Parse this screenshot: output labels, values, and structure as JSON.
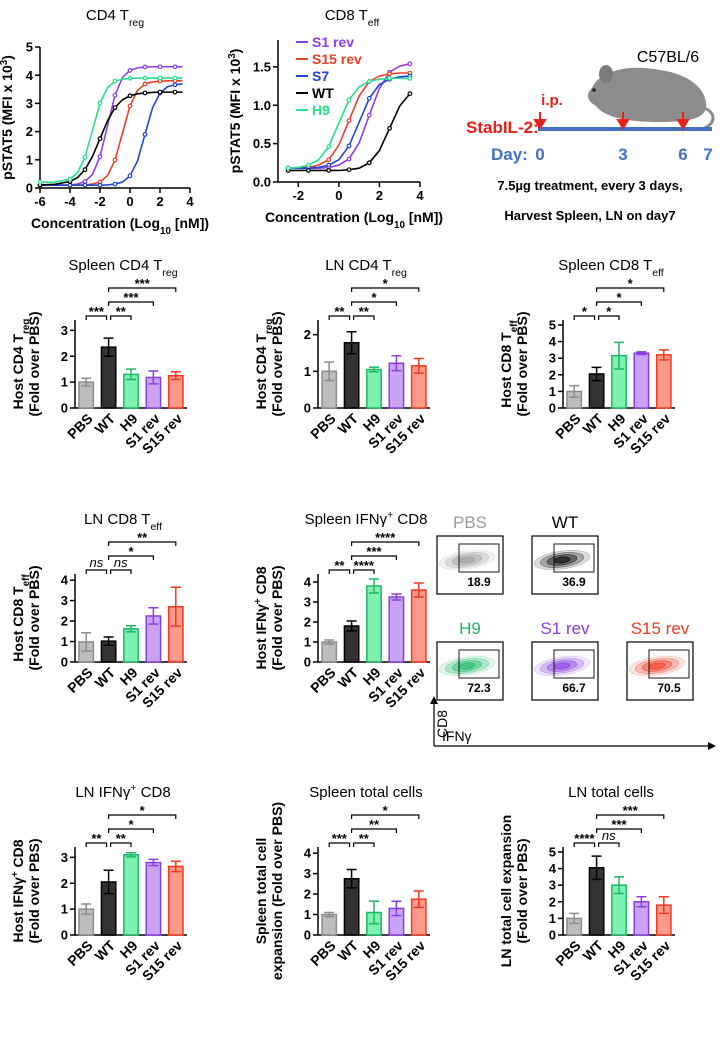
{
  "chart_data": [
    {
      "type": "line",
      "title": [
        {
          "text": "CD4 T"
        },
        {
          "text": "reg",
          "sub": true
        }
      ],
      "xlabel": [
        {
          "text": "Concentration (Log"
        },
        {
          "text": "10",
          "sub": true
        },
        {
          "text": " [nM])"
        }
      ],
      "ylabel": [
        {
          "text": "pSTAT5 (MFI x 10"
        },
        {
          "text": "3",
          "sup": true
        },
        {
          "text": ")"
        }
      ],
      "xlim": [
        -6,
        4
      ],
      "xticks": [
        -6,
        -4,
        -2,
        0,
        2,
        4
      ],
      "ylim": [
        0,
        5
      ],
      "yticks": [
        0,
        1,
        2,
        3,
        4,
        5
      ],
      "x": [
        -6,
        -5,
        -4,
        -3.5,
        -3,
        -2.5,
        -2,
        -1.5,
        -1,
        -0.5,
        0,
        0.5,
        1,
        1.5,
        2,
        2.5,
        3,
        3.5
      ],
      "series": [
        {
          "name": "S1 rev",
          "color": "#8f3de8",
          "values": [
            0.1,
            0.1,
            0.11,
            0.14,
            0.23,
            0.48,
            1.11,
            2.2,
            3.29,
            3.92,
            4.17,
            4.26,
            4.29,
            4.3,
            4.3,
            4.3,
            4.3,
            4.3
          ]
        },
        {
          "name": "S15 rev",
          "color": "#e8412a",
          "values": [
            0.1,
            0.1,
            0.1,
            0.1,
            0.11,
            0.14,
            0.21,
            0.44,
            0.99,
            1.95,
            2.91,
            3.46,
            3.69,
            3.76,
            3.79,
            3.8,
            3.8,
            3.8
          ]
        },
        {
          "name": "S7",
          "color": "#1f47d6",
          "values": [
            0.1,
            0.1,
            0.1,
            0.1,
            0.1,
            0.1,
            0.1,
            0.11,
            0.14,
            0.21,
            0.43,
            0.96,
            1.9,
            2.84,
            3.37,
            3.59,
            3.66,
            3.69
          ]
        },
        {
          "name": "WT",
          "color": "#000000",
          "values": [
            0.11,
            0.13,
            0.23,
            0.37,
            0.65,
            1.12,
            1.75,
            2.38,
            2.85,
            3.13,
            3.27,
            3.34,
            3.37,
            3.39,
            3.4,
            3.4,
            3.4,
            3.4
          ]
        },
        {
          "name": "H9",
          "color": "#28e08c",
          "values": [
            0.2,
            0.21,
            0.31,
            0.54,
            1.09,
            2.05,
            3.01,
            3.56,
            3.79,
            3.86,
            3.89,
            3.9,
            3.9,
            3.9,
            3.9,
            3.9,
            3.9,
            3.9
          ]
        }
      ]
    },
    {
      "type": "line",
      "title": [
        {
          "text": "CD8 T"
        },
        {
          "text": "eff",
          "sub": true
        }
      ],
      "xlabel": [
        {
          "text": "Concentration (Log"
        },
        {
          "text": "10",
          "sub": true
        },
        {
          "text": " [nM])"
        }
      ],
      "ylabel": [
        {
          "text": "pSTAT5 (MFI x 10"
        },
        {
          "text": "3",
          "sup": true
        },
        {
          "text": ")"
        }
      ],
      "legend": "upper left",
      "xlim": [
        -3,
        4
      ],
      "xticks": [
        -2,
        0,
        2,
        4
      ],
      "ylim": [
        0,
        1.85
      ],
      "yticks": [
        {
          "value": 0,
          "label": "0.0"
        },
        0.5,
        {
          "value": 1,
          "label": "1.0"
        },
        1.5
      ],
      "x": [
        -2.5,
        -2,
        -1.5,
        -1,
        -0.5,
        0,
        0.5,
        1,
        1.5,
        2,
        2.5,
        3,
        3.5
      ],
      "series": [
        {
          "name": "S1 rev",
          "color": "#8f3de8",
          "values": [
            0.18,
            0.18,
            0.18,
            0.18,
            0.19,
            0.22,
            0.3,
            0.51,
            0.87,
            1.22,
            1.43,
            1.51,
            1.54
          ]
        },
        {
          "name": "S15 rev",
          "color": "#e8412a",
          "values": [
            0.18,
            0.18,
            0.19,
            0.22,
            0.29,
            0.48,
            0.8,
            1.12,
            1.31,
            1.38,
            1.41,
            1.42,
            1.42
          ]
        },
        {
          "name": "S7",
          "color": "#1f47d6",
          "values": [
            0.18,
            0.18,
            0.18,
            0.19,
            0.22,
            0.29,
            0.47,
            0.78,
            1.09,
            1.27,
            1.34,
            1.37,
            1.38
          ]
        },
        {
          "name": "WT",
          "color": "#000000",
          "values": [
            0.15,
            0.15,
            0.15,
            0.15,
            0.15,
            0.15,
            0.16,
            0.18,
            0.25,
            0.41,
            0.7,
            0.99,
            1.15
          ]
        },
        {
          "name": "H9",
          "color": "#28e08c",
          "values": [
            0.18,
            0.19,
            0.22,
            0.29,
            0.46,
            0.77,
            1.07,
            1.24,
            1.31,
            1.34,
            1.35,
            1.35,
            1.35
          ]
        }
      ]
    },
    {
      "type": "bar",
      "title": [
        {
          "text": "Spleen CD4 T"
        },
        {
          "text": "reg",
          "sub": true
        }
      ],
      "ylabel": [
        [
          {
            "text": "Host CD4 T"
          },
          {
            "text": "reg",
            "sub": true
          }
        ],
        "(Fold over PBS)"
      ],
      "categories": [
        "PBS",
        "WT",
        "H9",
        "S1 rev",
        "S15 rev"
      ],
      "colors": [
        "#bdbdbd",
        "#333333",
        "#7ef0b0",
        "#c9a3f5",
        "#ff9a8a"
      ],
      "edge_colors": [
        "#8c8c8c",
        "#000000",
        "#1db865",
        "#8a3ee0",
        "#f03a20"
      ],
      "values": [
        1.0,
        2.35,
        1.3,
        1.18,
        1.25
      ],
      "errors": [
        0.15,
        0.35,
        0.2,
        0.25,
        0.15
      ],
      "ylim": [
        0,
        3.4
      ],
      "yticks": [
        0,
        1,
        2,
        3
      ],
      "significance": [
        {
          "between": [
            "PBS",
            "WT"
          ],
          "label": "***"
        },
        {
          "between": [
            "WT",
            "H9"
          ],
          "label": "**"
        },
        {
          "between": [
            "WT",
            "S1 rev"
          ],
          "label": "***"
        },
        {
          "between": [
            "WT",
            "S15 rev"
          ],
          "label": "***"
        }
      ]
    },
    {
      "type": "bar",
      "title": [
        {
          "text": "LN CD4 T"
        },
        {
          "text": "reg",
          "sub": true
        }
      ],
      "ylabel": [
        [
          {
            "text": "Host CD4 T"
          },
          {
            "text": "reg",
            "sub": true
          }
        ],
        "(Fold over PBS)"
      ],
      "categories": [
        "PBS",
        "WT",
        "H9",
        "S1 rev",
        "S15 rev"
      ],
      "colors": [
        "#bdbdbd",
        "#333333",
        "#7ef0b0",
        "#c9a3f5",
        "#ff9a8a"
      ],
      "edge_colors": [
        "#8c8c8c",
        "#000000",
        "#1db865",
        "#8a3ee0",
        "#f03a20"
      ],
      "values": [
        1.0,
        1.78,
        1.05,
        1.22,
        1.15
      ],
      "errors": [
        0.25,
        0.3,
        0.06,
        0.2,
        0.2
      ],
      "ylim": [
        0,
        2.4
      ],
      "yticks": [
        0,
        1,
        2
      ],
      "significance": [
        {
          "between": [
            "PBS",
            "WT"
          ],
          "label": "**"
        },
        {
          "between": [
            "WT",
            "H9"
          ],
          "label": "**"
        },
        {
          "between": [
            "WT",
            "S1 rev"
          ],
          "label": "*"
        },
        {
          "between": [
            "WT",
            "S15 rev"
          ],
          "label": "*"
        }
      ]
    },
    {
      "type": "bar",
      "title": [
        {
          "text": "Spleen CD8 T"
        },
        {
          "text": "eff",
          "sub": true
        }
      ],
      "ylabel": [
        [
          {
            "text": "Host CD8 T"
          },
          {
            "text": "eff",
            "sub": true
          }
        ],
        "(Fold over PBS)"
      ],
      "categories": [
        "PBS",
        "WT",
        "H9",
        "S1 rev",
        "S15 rev"
      ],
      "colors": [
        "#bdbdbd",
        "#333333",
        "#7ef0b0",
        "#c9a3f5",
        "#ff9a8a"
      ],
      "edge_colors": [
        "#8c8c8c",
        "#000000",
        "#1db865",
        "#8a3ee0",
        "#f03a20"
      ],
      "values": [
        1.0,
        2.05,
        3.15,
        3.3,
        3.2
      ],
      "errors": [
        0.35,
        0.4,
        0.8,
        0.08,
        0.3
      ],
      "ylim": [
        0,
        5.3
      ],
      "yticks": [
        0,
        1,
        2,
        3,
        4,
        5
      ],
      "significance": [
        {
          "between": [
            "PBS",
            "WT"
          ],
          "label": "*"
        },
        {
          "between": [
            "WT",
            "H9"
          ],
          "label": "*"
        },
        {
          "between": [
            "WT",
            "S1 rev"
          ],
          "label": "*"
        },
        {
          "between": [
            "WT",
            "S15 rev"
          ],
          "label": "*"
        }
      ]
    },
    {
      "type": "bar",
      "title": [
        {
          "text": "LN CD8 T"
        },
        {
          "text": "eff",
          "sub": true
        }
      ],
      "ylabel": [
        [
          {
            "text": "Host CD8 T"
          },
          {
            "text": "eff",
            "sub": true
          }
        ],
        "(Fold over PBS)"
      ],
      "categories": [
        "PBS",
        "WT",
        "H9",
        "S1 rev",
        "S15 rev"
      ],
      "colors": [
        "#bdbdbd",
        "#333333",
        "#7ef0b0",
        "#c9a3f5",
        "#ff9a8a"
      ],
      "edge_colors": [
        "#8c8c8c",
        "#000000",
        "#1db865",
        "#8a3ee0",
        "#f03a20"
      ],
      "values": [
        0.98,
        1.02,
        1.62,
        2.25,
        2.7
      ],
      "errors": [
        0.45,
        0.2,
        0.15,
        0.4,
        0.95
      ],
      "ylim": [
        0,
        4.3
      ],
      "yticks": [
        0,
        1,
        2,
        3,
        4
      ],
      "significance": [
        {
          "between": [
            "PBS",
            "WT"
          ],
          "label": "ns"
        },
        {
          "between": [
            "WT",
            "H9"
          ],
          "label": "ns"
        },
        {
          "between": [
            "WT",
            "S1 rev"
          ],
          "label": "*"
        },
        {
          "between": [
            "WT",
            "S15 rev"
          ],
          "label": "**"
        }
      ]
    },
    {
      "type": "bar",
      "title": [
        {
          "text": "Spleen  IFNγ"
        },
        {
          "text": "+",
          "sup": true
        },
        {
          "text": " CD8"
        }
      ],
      "ylabel": [
        [
          {
            "text": "Host IFNγ"
          },
          {
            "text": "+",
            "sup": true
          },
          {
            "text": " CD8"
          }
        ],
        "(Fold over PBS)"
      ],
      "categories": [
        "PBS",
        "WT",
        "H9",
        "S1 rev",
        "S15 rev"
      ],
      "colors": [
        "#bdbdbd",
        "#333333",
        "#7ef0b0",
        "#c9a3f5",
        "#ff9a8a"
      ],
      "edge_colors": [
        "#8c8c8c",
        "#000000",
        "#1db865",
        "#8a3ee0",
        "#f03a20"
      ],
      "values": [
        1.0,
        1.8,
        3.8,
        3.25,
        3.6
      ],
      "errors": [
        0.1,
        0.25,
        0.35,
        0.15,
        0.35
      ],
      "ylim": [
        0,
        4.4
      ],
      "yticks": [
        0,
        1,
        2,
        3,
        4
      ],
      "significance": [
        {
          "between": [
            "PBS",
            "WT"
          ],
          "label": "**"
        },
        {
          "between": [
            "WT",
            "H9"
          ],
          "label": "****"
        },
        {
          "between": [
            "WT",
            "S1 rev"
          ],
          "label": "***"
        },
        {
          "between": [
            "WT",
            "S15 rev"
          ],
          "label": "****"
        }
      ]
    },
    {
      "type": "bar",
      "title": [
        {
          "text": "LN IFNγ"
        },
        {
          "text": "+",
          "sup": true
        },
        {
          "text": " CD8"
        }
      ],
      "ylabel": [
        [
          {
            "text": "Host IFNγ"
          },
          {
            "text": "+",
            "sup": true
          },
          {
            "text": " CD8"
          }
        ],
        "(Fold over PBS)"
      ],
      "categories": [
        "PBS",
        "WT",
        "H9",
        "S1 rev",
        "S15 rev"
      ],
      "colors": [
        "#bdbdbd",
        "#333333",
        "#7ef0b0",
        "#c9a3f5",
        "#ff9a8a"
      ],
      "edge_colors": [
        "#8c8c8c",
        "#000000",
        "#1db865",
        "#8a3ee0",
        "#f03a20"
      ],
      "values": [
        1.0,
        2.05,
        3.1,
        2.8,
        2.65
      ],
      "errors": [
        0.2,
        0.45,
        0.08,
        0.12,
        0.2
      ],
      "ylim": [
        0,
        3.4
      ],
      "yticks": [
        0,
        1,
        2,
        3
      ],
      "significance": [
        {
          "between": [
            "PBS",
            "WT"
          ],
          "label": "**"
        },
        {
          "between": [
            "WT",
            "H9"
          ],
          "label": "**"
        },
        {
          "between": [
            "WT",
            "S1 rev"
          ],
          "label": "*"
        },
        {
          "between": [
            "WT",
            "S15 rev"
          ],
          "label": "*"
        }
      ]
    },
    {
      "type": "bar",
      "title": "Spleen total cells",
      "ylabel": [
        "Spleen total cell",
        "expansion (Fold over PBS)"
      ],
      "categories": [
        "PBS",
        "WT",
        "H9",
        "S1 rev",
        "S15 rev"
      ],
      "colors": [
        "#bdbdbd",
        "#333333",
        "#7ef0b0",
        "#c9a3f5",
        "#ff9a8a"
      ],
      "edge_colors": [
        "#8c8c8c",
        "#000000",
        "#1db865",
        "#8a3ee0",
        "#f03a20"
      ],
      "values": [
        1.0,
        2.75,
        1.1,
        1.3,
        1.75
      ],
      "errors": [
        0.1,
        0.45,
        0.55,
        0.35,
        0.4
      ],
      "ylim": [
        0,
        4.3
      ],
      "yticks": [
        0,
        1,
        2,
        3,
        4
      ],
      "significance": [
        {
          "between": [
            "PBS",
            "WT"
          ],
          "label": "***"
        },
        {
          "between": [
            "WT",
            "H9"
          ],
          "label": "**"
        },
        {
          "between": [
            "WT",
            "S1 rev"
          ],
          "label": "**"
        },
        {
          "between": [
            "WT",
            "S15 rev"
          ],
          "label": "*"
        }
      ]
    },
    {
      "type": "bar",
      "title": "LN total cells",
      "ylabel": [
        "LN total cell expansion",
        "(Fold over PBS)"
      ],
      "categories": [
        "PBS",
        "WT",
        "H9",
        "S1 rev",
        "S15 rev"
      ],
      "colors": [
        "#bdbdbd",
        "#333333",
        "#7ef0b0",
        "#c9a3f5",
        "#ff9a8a"
      ],
      "edge_colors": [
        "#8c8c8c",
        "#000000",
        "#1db865",
        "#8a3ee0",
        "#f03a20"
      ],
      "values": [
        1.0,
        4.05,
        3.0,
        2.0,
        1.8
      ],
      "errors": [
        0.3,
        0.7,
        0.5,
        0.3,
        0.5
      ],
      "ylim": [
        0,
        5.3
      ],
      "yticks": [
        0,
        1,
        2,
        3,
        4,
        5
      ],
      "significance": [
        {
          "between": [
            "PBS",
            "WT"
          ],
          "label": "****"
        },
        {
          "between": [
            "WT",
            "H9"
          ],
          "label": "ns"
        },
        {
          "between": [
            "WT",
            "S1 rev"
          ],
          "label": "***"
        },
        {
          "between": [
            "WT",
            "S15 rev"
          ],
          "label": "***"
        }
      ]
    }
  ],
  "schematic": {
    "strain": "C57BL/6",
    "route": "i.p.",
    "drug": "StabIL-2:",
    "day_label": "Day:",
    "days": [
      0,
      3,
      6,
      7
    ],
    "note_1": "7.5µg treatment, every 3 days,",
    "note_2": "Harvest Spleen, LN on day7"
  },
  "flow": {
    "x_label": "IFNγ",
    "y_label": "CD8",
    "samples": [
      {
        "name": "PBS",
        "percent": 18.9,
        "color": "#9a9a9a"
      },
      {
        "name": "WT",
        "percent": 36.9,
        "color": "#000000"
      },
      {
        "name": "H9",
        "percent": 72.3,
        "color": "#1db865"
      },
      {
        "name": "S1 rev",
        "percent": 66.7,
        "color": "#8a3ee0"
      },
      {
        "name": "S15 rev",
        "percent": 70.5,
        "color": "#f03a20"
      }
    ]
  }
}
